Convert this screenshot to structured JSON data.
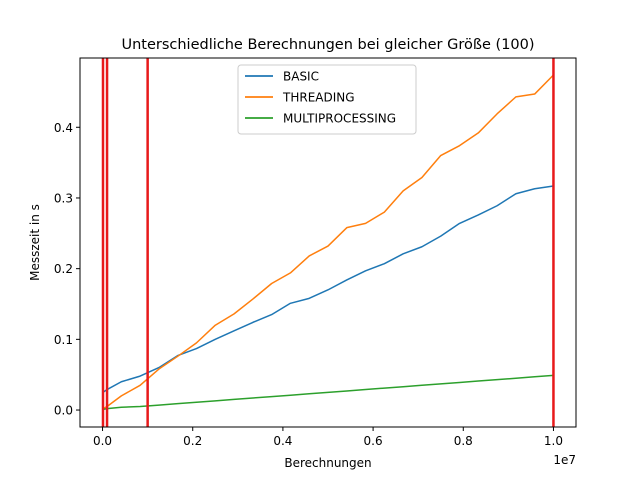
{
  "chart_data": {
    "type": "line",
    "title": "Unterschiedliche Berechnungen bei gleicher Größe (100)",
    "xlabel": "Berechnungen",
    "ylabel": "Messzeit in s",
    "x_offset_text": "1e7",
    "xlim": [
      -500000,
      10500000
    ],
    "ylim": [
      -0.024,
      0.498
    ],
    "x_ticks": [
      0,
      2000000,
      4000000,
      6000000,
      8000000,
      10000000
    ],
    "x_tick_labels": [
      "0.0",
      "0.2",
      "0.4",
      "0.6",
      "0.8",
      "1.0"
    ],
    "y_ticks": [
      0.0,
      0.1,
      0.2,
      0.3,
      0.4
    ],
    "y_tick_labels": [
      "0.0",
      "0.1",
      "0.2",
      "0.3",
      "0.4"
    ],
    "grid": false,
    "legend_position": "top-center",
    "vertical_lines": {
      "color": "#e8191a",
      "x": [
        10000,
        100000,
        1000000,
        10000000
      ]
    },
    "x": [
      10000,
      100000,
      416667,
      833333,
      1250000,
      1666667,
      2083333,
      2500000,
      2916667,
      3333333,
      3750000,
      4166667,
      4583333,
      5000000,
      5416667,
      5833333,
      6250000,
      6666667,
      7083333,
      7500000,
      7916667,
      8333333,
      8750000,
      9166667,
      9583333,
      10000000
    ],
    "series": [
      {
        "name": "BASIC",
        "color": "#1f77b4",
        "values": [
          0.025,
          0.029,
          0.04,
          0.048,
          0.06,
          0.077,
          0.087,
          0.1,
          0.112,
          0.124,
          0.135,
          0.151,
          0.158,
          0.17,
          0.184,
          0.197,
          0.207,
          0.221,
          0.231,
          0.246,
          0.264,
          0.276,
          0.289,
          0.306,
          0.313,
          0.317
        ]
      },
      {
        "name": "THREADING",
        "color": "#ff7f0e",
        "values": [
          0.002,
          0.005,
          0.02,
          0.035,
          0.058,
          0.076,
          0.095,
          0.12,
          0.136,
          0.157,
          0.179,
          0.194,
          0.218,
          0.232,
          0.258,
          0.264,
          0.28,
          0.31,
          0.329,
          0.36,
          0.374,
          0.392,
          0.419,
          0.443,
          0.447,
          0.474
        ]
      },
      {
        "name": "MULTIPROCESSING",
        "color": "#2ca02c",
        "values": [
          0.001,
          0.002,
          0.004,
          0.005,
          0.007,
          0.009,
          0.011,
          0.013,
          0.015,
          0.017,
          0.019,
          0.021,
          0.023,
          0.025,
          0.027,
          0.029,
          0.031,
          0.033,
          0.035,
          0.037,
          0.039,
          0.041,
          0.043,
          0.045,
          0.047,
          0.049
        ]
      }
    ]
  }
}
